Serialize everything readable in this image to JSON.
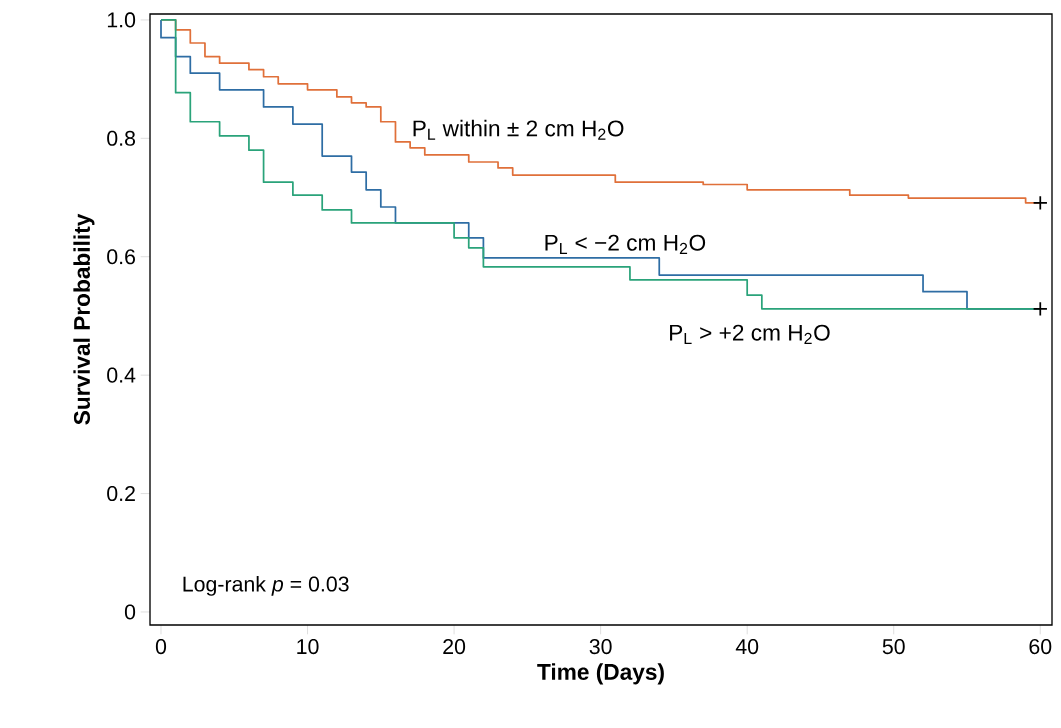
{
  "chart_data": {
    "type": "step",
    "xlabel": "Time (Days)",
    "ylabel": "Survival Probability",
    "xlim": [
      -0.75,
      60.8
    ],
    "ylim": [
      -0.022,
      1.01
    ],
    "xticks": [
      0,
      10,
      20,
      30,
      40,
      50,
      60
    ],
    "yticks": [
      0,
      0.2,
      0.4,
      0.6,
      0.8,
      {
        "value": 1,
        "label": "1.0"
      }
    ],
    "grid": false,
    "legend": false,
    "annotations": [
      "Log-rank *p* = 0.03"
    ],
    "series": [
      {
        "name": "P$_{L}$ within ± 2 cm H$_{2}$O",
        "color": "#e0703a",
        "x": [
          0,
          1,
          2,
          3,
          4,
          6,
          7,
          8,
          10,
          12,
          13,
          14,
          15,
          16,
          17,
          18,
          21,
          23,
          24,
          31,
          37,
          40,
          47,
          51,
          59,
          60
        ],
        "values": [
          1.0,
          0.983,
          0.961,
          0.938,
          0.927,
          0.916,
          0.904,
          0.892,
          0.882,
          0.87,
          0.86,
          0.853,
          0.828,
          0.794,
          0.784,
          0.772,
          0.76,
          0.75,
          0.738,
          0.726,
          0.722,
          0.713,
          0.704,
          0.699,
          0.691,
          0.691
        ]
      },
      {
        "name": "P$_{L}$ < −2 cm H$_{2}$O",
        "color": "#2e6da4",
        "x": [
          0,
          0,
          1,
          2,
          4,
          7,
          9,
          11,
          13,
          14,
          15,
          16,
          21,
          22,
          34,
          52,
          55,
          60
        ],
        "values": [
          1.0,
          0.97,
          0.938,
          0.91,
          0.882,
          0.853,
          0.824,
          0.77,
          0.743,
          0.713,
          0.684,
          0.657,
          0.632,
          0.598,
          0.569,
          0.541,
          0.512,
          0.512
        ]
      },
      {
        "name": "P$_{L}$ > +2 cm H$_{2}$O",
        "color": "#2aa37a",
        "x": [
          0,
          1,
          2,
          4,
          6,
          7,
          9,
          11,
          13,
          20,
          21,
          22,
          32,
          40,
          41,
          60
        ],
        "values": [
          1.0,
          0.877,
          0.828,
          0.804,
          0.78,
          0.726,
          0.704,
          0.679,
          0.657,
          0.632,
          0.615,
          0.583,
          0.561,
          0.535,
          0.512,
          0.512
        ]
      },
      {
        "type": "scatter",
        "marker": "cross",
        "color": "#000000",
        "x": [
          60,
          60
        ],
        "values": [
          0.691,
          0.512
        ]
      }
    ]
  }
}
